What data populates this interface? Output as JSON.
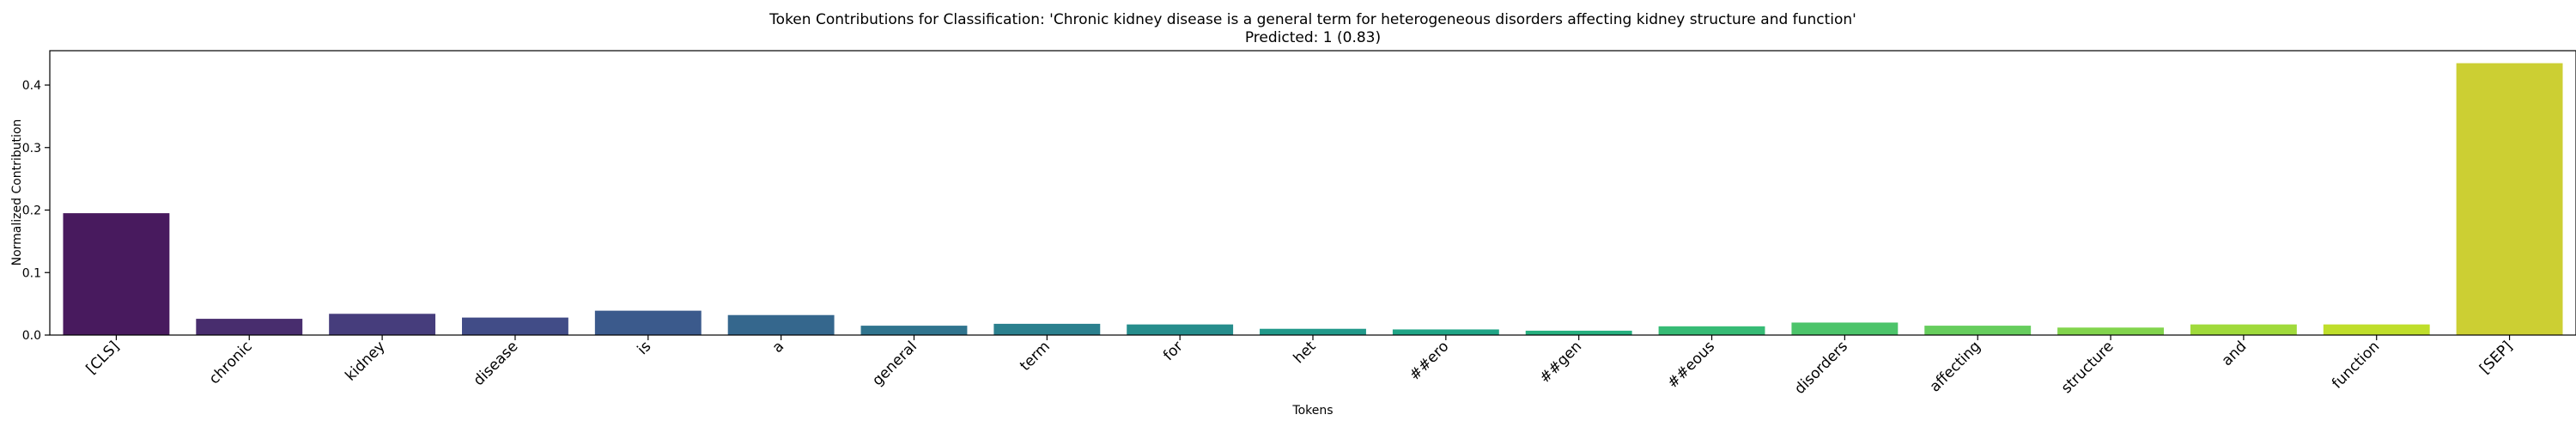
{
  "chart_data": {
    "type": "bar",
    "title": "Token Contributions for Classification: 'Chronic kidney disease is a general term for heterogeneous disorders affecting kidney structure and function'",
    "subtitle": "Predicted: 1 (0.83)",
    "xlabel": "Tokens",
    "ylabel": "Normalized Contribution",
    "ylim": [
      0,
      0.455
    ],
    "yticks": [
      "0.0",
      "0.1",
      "0.2",
      "0.3",
      "0.4"
    ],
    "grid": false,
    "categories": [
      "[CLS]",
      "chronic",
      "kidney",
      "disease",
      "is",
      "a",
      "general",
      "term",
      "for",
      "het",
      "##ero",
      "##gen",
      "##eous",
      "disorders",
      "affecting",
      "structure",
      "and",
      "function",
      "[SEP]"
    ],
    "values": [
      0.195,
      0.026,
      0.034,
      0.028,
      0.039,
      0.032,
      0.015,
      0.018,
      0.017,
      0.01,
      0.009,
      0.007,
      0.014,
      0.02,
      0.015,
      0.012,
      0.017,
      0.017,
      0.435
    ],
    "colors": [
      "#481a5e",
      "#482d6e",
      "#463d7c",
      "#414c87",
      "#3b5a8c",
      "#35678d",
      "#30748e",
      "#2b808e",
      "#268d8c",
      "#21998a",
      "#20a586",
      "#26b07f",
      "#36bb75",
      "#4cc46a",
      "#66cd5d",
      "#82d44d",
      "#a0da3b",
      "#bfde2a",
      "#cccf33"
    ]
  }
}
